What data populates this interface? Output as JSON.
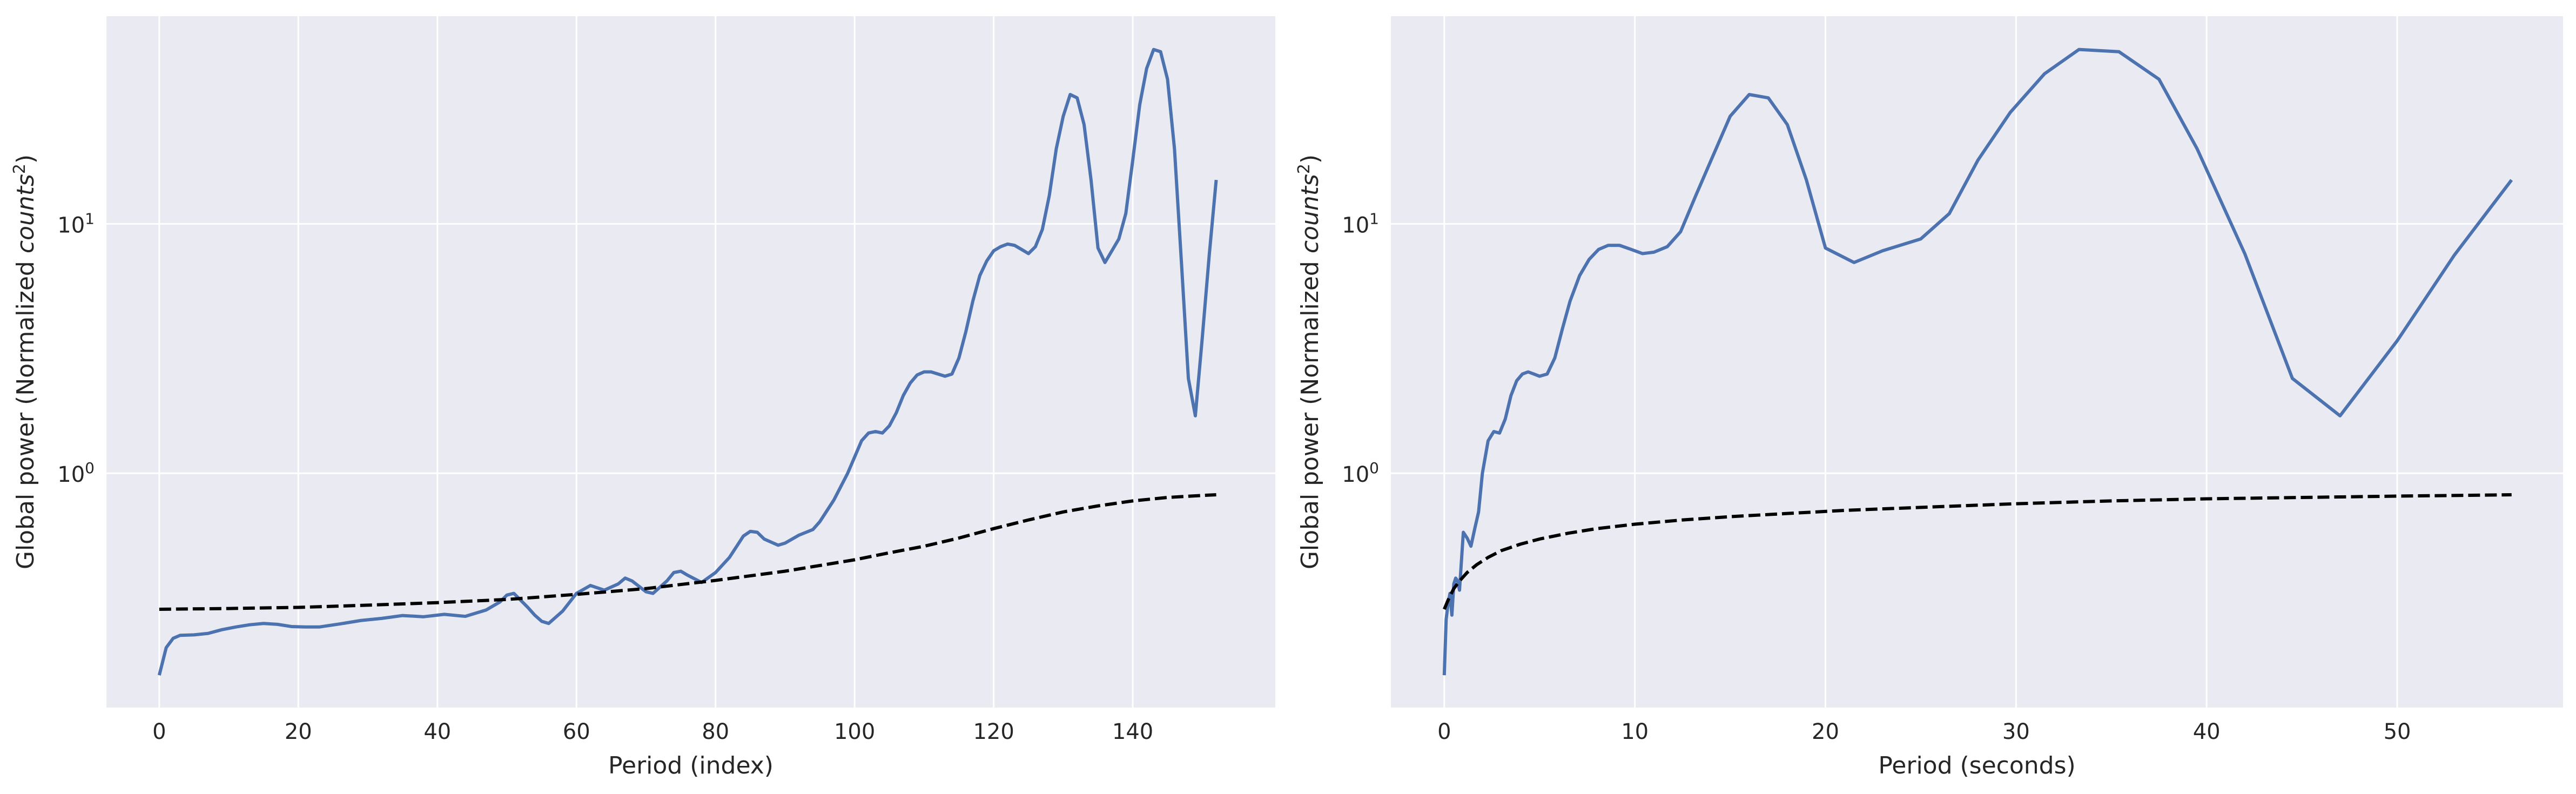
{
  "chart_data": [
    {
      "type": "line",
      "title": "",
      "xlabel": "Period (index)",
      "ylabel_prefix": "Global power (Normalized ",
      "ylabel_italic": "counts",
      "ylabel_sup": "2",
      "ylabel_suffix": ")",
      "yscale": "log",
      "xlim": [
        -7.6,
        160.5
      ],
      "ylim": [
        0.115,
        68
      ],
      "grid": true,
      "xticks": [
        0,
        20,
        40,
        60,
        80,
        100,
        120,
        140
      ],
      "xtick_labels": [
        "0",
        "20",
        "40",
        "60",
        "80",
        "100",
        "120",
        "140"
      ],
      "yticks": [
        1,
        10
      ],
      "ytick_bases": [
        "10",
        "10"
      ],
      "ytick_exps": [
        "0",
        "1"
      ],
      "series": [
        {
          "color": "#4c72b0",
          "style": "solid",
          "x": [
            0,
            1,
            2,
            3,
            5,
            7,
            9,
            11,
            13,
            15,
            17,
            19,
            21,
            23,
            26,
            29,
            32,
            35,
            38,
            41,
            44,
            47,
            49,
            50,
            51,
            53,
            54,
            55,
            56,
            58,
            60,
            62,
            64,
            66,
            67,
            68,
            70,
            71,
            73,
            74,
            75,
            76,
            78,
            80,
            82,
            84,
            85,
            86,
            87,
            89,
            90,
            92,
            94,
            95,
            97,
            99,
            101,
            102,
            103,
            104,
            105,
            106,
            107,
            108,
            109,
            110,
            111,
            112,
            113,
            114,
            115,
            116,
            117,
            118,
            119,
            120,
            121,
            122,
            123,
            124,
            125,
            126,
            127,
            128,
            129,
            130,
            131,
            132,
            133,
            134,
            135,
            136,
            137,
            138,
            139,
            140,
            141,
            142,
            143,
            144,
            145,
            146,
            147,
            148,
            149,
            150,
            151,
            152
          ],
          "y": [
            0.155,
            0.2,
            0.218,
            0.224,
            0.225,
            0.228,
            0.236,
            0.242,
            0.247,
            0.25,
            0.248,
            0.243,
            0.242,
            0.242,
            0.249,
            0.257,
            0.262,
            0.269,
            0.266,
            0.272,
            0.267,
            0.283,
            0.305,
            0.325,
            0.33,
            0.29,
            0.27,
            0.255,
            0.25,
            0.28,
            0.33,
            0.355,
            0.34,
            0.36,
            0.38,
            0.37,
            0.335,
            0.33,
            0.37,
            0.4,
            0.405,
            0.39,
            0.365,
            0.4,
            0.46,
            0.56,
            0.585,
            0.58,
            0.545,
            0.515,
            0.525,
            0.565,
            0.595,
            0.64,
            0.78,
            1.0,
            1.35,
            1.45,
            1.47,
            1.45,
            1.55,
            1.75,
            2.05,
            2.3,
            2.48,
            2.55,
            2.55,
            2.5,
            2.45,
            2.5,
            2.9,
            3.7,
            4.9,
            6.2,
            7.1,
            7.8,
            8.1,
            8.3,
            8.2,
            7.9,
            7.6,
            8.1,
            9.5,
            13,
            20,
            27,
            33,
            32,
            25,
            15,
            8,
            7,
            7.8,
            8.7,
            11,
            18,
            30,
            42,
            50,
            49,
            38,
            20,
            7,
            2.4,
            1.7,
            3.5,
            7.5,
            15
          ]
        },
        {
          "color": "#000000",
          "style": "dashed",
          "x": [
            0,
            10,
            20,
            30,
            40,
            50,
            60,
            70,
            80,
            90,
            100,
            105,
            110,
            115,
            120,
            125,
            130,
            135,
            140,
            145,
            150,
            152
          ],
          "y": [
            0.285,
            0.287,
            0.29,
            0.296,
            0.303,
            0.312,
            0.327,
            0.345,
            0.372,
            0.405,
            0.45,
            0.48,
            0.51,
            0.55,
            0.6,
            0.65,
            0.7,
            0.74,
            0.775,
            0.8,
            0.815,
            0.82
          ]
        }
      ]
    },
    {
      "type": "line",
      "title": "",
      "xlabel": "Period (seconds)",
      "ylabel_prefix": "Global power (Normalized ",
      "ylabel_italic": "counts",
      "ylabel_sup": "2",
      "ylabel_suffix": ")",
      "yscale": "log",
      "xlim": [
        -2.8,
        58.7
      ],
      "ylim": [
        0.115,
        68
      ],
      "grid": true,
      "xticks": [
        0,
        10,
        20,
        30,
        40,
        50
      ],
      "xtick_labels": [
        "0",
        "10",
        "20",
        "30",
        "40",
        "50"
      ],
      "yticks": [
        1,
        10
      ],
      "ytick_bases": [
        "10",
        "10"
      ],
      "ytick_exps": [
        "0",
        "1"
      ],
      "series": [
        {
          "color": "#4c72b0",
          "style": "solid",
          "x": [
            0.0,
            0.05,
            0.1,
            0.2,
            0.3,
            0.4,
            0.5,
            0.6,
            0.7,
            0.8,
            1.0,
            1.2,
            1.4,
            1.6,
            1.8,
            2.0,
            2.3,
            2.6,
            2.9,
            3.2,
            3.5,
            3.8,
            4.1,
            4.4,
            4.7,
            5.0,
            5.4,
            5.8,
            6.2,
            6.6,
            7.1,
            7.6,
            8.1,
            8.6,
            9.2,
            9.8,
            10.4,
            11.0,
            11.7,
            12.4,
            13.2,
            14.0,
            15.0,
            16.0,
            17.0,
            18.0,
            19.0,
            20.0,
            21.5,
            23.0,
            25.0,
            26.5,
            28.0,
            29.7,
            31.5,
            33.3,
            35.4,
            37.5,
            39.5,
            42.0,
            44.5,
            47.0,
            50.0,
            53.0,
            56.0
          ],
          "y": [
            0.155,
            0.2,
            0.26,
            0.3,
            0.33,
            0.27,
            0.36,
            0.38,
            0.37,
            0.34,
            0.58,
            0.55,
            0.51,
            0.6,
            0.7,
            1.0,
            1.35,
            1.47,
            1.45,
            1.65,
            2.05,
            2.35,
            2.5,
            2.55,
            2.5,
            2.45,
            2.5,
            2.9,
            3.8,
            4.9,
            6.2,
            7.2,
            7.9,
            8.2,
            8.2,
            7.9,
            7.6,
            7.7,
            8.1,
            9.3,
            13,
            18,
            27,
            33,
            32,
            25,
            15,
            8,
            7,
            7.8,
            8.7,
            11,
            18,
            28,
            40,
            50,
            49,
            38,
            20,
            7.6,
            2.4,
            1.7,
            3.4,
            7.5,
            15
          ]
        },
        {
          "color": "#000000",
          "style": "dashed",
          "x": [
            0.0,
            0.2,
            0.5,
            0.8,
            1.2,
            1.7,
            2.3,
            3.0,
            4.0,
            5.0,
            6.5,
            8.0,
            10.0,
            12.5,
            15.0,
            18.0,
            21.0,
            25.0,
            30.0,
            35.0,
            40.0,
            45.0,
            50.0,
            56.0
          ],
          "y": [
            0.285,
            0.31,
            0.345,
            0.37,
            0.4,
            0.43,
            0.46,
            0.49,
            0.52,
            0.545,
            0.575,
            0.6,
            0.625,
            0.65,
            0.67,
            0.69,
            0.71,
            0.73,
            0.755,
            0.775,
            0.79,
            0.8,
            0.81,
            0.82
          ]
        }
      ]
    }
  ]
}
